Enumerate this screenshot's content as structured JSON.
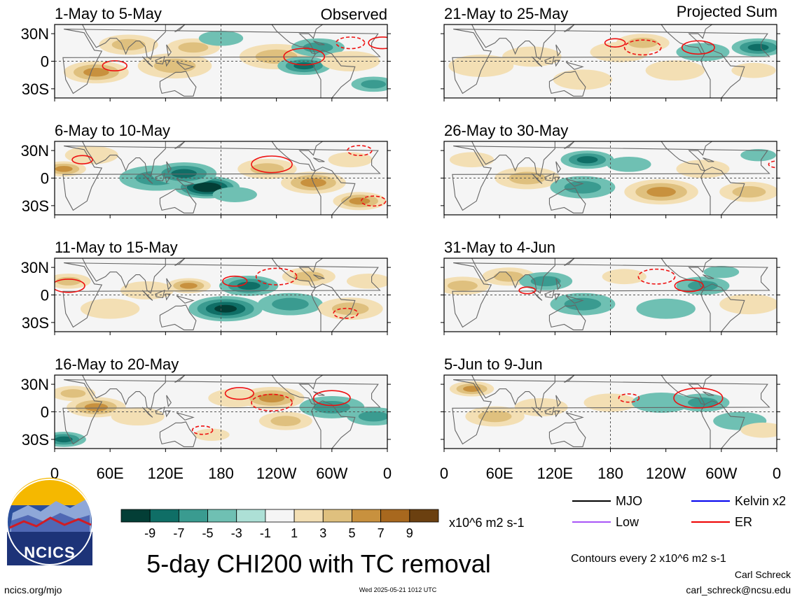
{
  "chart_data": {
    "type": "heatmap",
    "layout": "two columns of four longitude-latitude map panels",
    "title": "5-day CHI200 with TC removal",
    "units_label": "x10^6 m2 s-1",
    "column_headers": {
      "left": "Observed",
      "right": "Projected Sum"
    },
    "panels": [
      {
        "label": "1-May to 5-May",
        "column": "left"
      },
      {
        "label": "6-May to 10-May",
        "column": "left"
      },
      {
        "label": "11-May to 15-May",
        "column": "left"
      },
      {
        "label": "16-May to 20-May",
        "column": "left"
      },
      {
        "label": "21-May to 25-May",
        "column": "right"
      },
      {
        "label": "26-May to 30-May",
        "column": "right"
      },
      {
        "label": "31-May to 4-Jun",
        "column": "right"
      },
      {
        "label": "5-Jun to 9-Jun",
        "column": "right"
      }
    ],
    "y_ticks": [
      "30N",
      "0",
      "30S"
    ],
    "x_ticks": [
      "0",
      "60E",
      "120E",
      "180",
      "120W",
      "60W",
      "0"
    ],
    "xlim": [
      0,
      360
    ],
    "ylim": [
      -40,
      40
    ],
    "colorbar": {
      "tick_labels": [
        "-9",
        "-7",
        "-5",
        "-3",
        "-1",
        "1",
        "3",
        "5",
        "7",
        "9"
      ],
      "colors": [
        "#033e36",
        "#0f6e66",
        "#3a9b90",
        "#6fc0b3",
        "#ade0d6",
        "#f5f5f5",
        "#f3dfb4",
        "#dfc07e",
        "#c8913e",
        "#a8681e",
        "#6b4010"
      ]
    },
    "legend": [
      {
        "name": "MJO",
        "color": "#000000"
      },
      {
        "name": "Kelvin x2",
        "color": "#0000ee"
      },
      {
        "name": "Low",
        "color": "#a855f7"
      },
      {
        "name": "ER",
        "color": "#ee0000"
      }
    ],
    "contour_note": "Contours every 2 x10^6 m2 s-1",
    "anomaly_centers": [
      [
        {
          "lon": 45,
          "lat": -12,
          "v": 5,
          "r": 22
        },
        {
          "lon": 80,
          "lat": 18,
          "v": 3,
          "r": 20
        },
        {
          "lon": 130,
          "lat": -5,
          "v": 3,
          "r": 25
        },
        {
          "lon": 150,
          "lat": 15,
          "v": 4,
          "r": 18
        },
        {
          "lon": 180,
          "lat": 25,
          "v": -2,
          "r": 15
        },
        {
          "lon": 240,
          "lat": 5,
          "v": 3,
          "r": 25
        },
        {
          "lon": 270,
          "lat": -5,
          "v": -6,
          "r": 18
        },
        {
          "lon": 285,
          "lat": 15,
          "v": -3,
          "r": 18
        },
        {
          "lon": 345,
          "lat": -25,
          "v": -3,
          "r": 15
        },
        {
          "lon": 320,
          "lat": 0,
          "v": 2,
          "r": 20
        }
      ],
      [
        {
          "lon": 10,
          "lat": 10,
          "v": 5,
          "r": 15
        },
        {
          "lon": 40,
          "lat": 25,
          "v": 2,
          "r": 18
        },
        {
          "lon": 110,
          "lat": 0,
          "v": -4,
          "r": 25
        },
        {
          "lon": 165,
          "lat": -10,
          "v": -9,
          "r": 22
        },
        {
          "lon": 140,
          "lat": 5,
          "v": -5,
          "r": 22
        },
        {
          "lon": 195,
          "lat": -18,
          "v": -2,
          "r": 15
        },
        {
          "lon": 230,
          "lat": 10,
          "v": 3,
          "r": 20
        },
        {
          "lon": 280,
          "lat": -5,
          "v": 6,
          "r": 22
        },
        {
          "lon": 330,
          "lat": -25,
          "v": 6,
          "r": 18
        },
        {
          "lon": 320,
          "lat": 20,
          "v": 2,
          "r": 15
        }
      ],
      [
        {
          "lon": 15,
          "lat": 15,
          "v": 3,
          "r": 15
        },
        {
          "lon": 60,
          "lat": -15,
          "v": 2,
          "r": 20
        },
        {
          "lon": 100,
          "lat": 5,
          "v": 2,
          "r": 18
        },
        {
          "lon": 145,
          "lat": 10,
          "v": 5,
          "r": 15
        },
        {
          "lon": 185,
          "lat": -15,
          "v": -8,
          "r": 25
        },
        {
          "lon": 210,
          "lat": 10,
          "v": -6,
          "r": 20
        },
        {
          "lon": 255,
          "lat": -10,
          "v": -3,
          "r": 22
        },
        {
          "lon": 275,
          "lat": 20,
          "v": 3,
          "r": 18
        },
        {
          "lon": 320,
          "lat": -15,
          "v": 3,
          "r": 22
        },
        {
          "lon": 340,
          "lat": 15,
          "v": 2,
          "r": 15
        }
      ],
      [
        {
          "lon": 20,
          "lat": 20,
          "v": 3,
          "r": 15
        },
        {
          "lon": 45,
          "lat": 5,
          "v": 6,
          "r": 20
        },
        {
          "lon": 90,
          "lat": -5,
          "v": 2,
          "r": 18
        },
        {
          "lon": 195,
          "lat": 15,
          "v": 2,
          "r": 18
        },
        {
          "lon": 235,
          "lat": 15,
          "v": 6,
          "r": 22
        },
        {
          "lon": 250,
          "lat": -10,
          "v": 3,
          "r": 18
        },
        {
          "lon": 300,
          "lat": 5,
          "v": -3,
          "r": 22
        },
        {
          "lon": 345,
          "lat": -5,
          "v": -4,
          "r": 18
        },
        {
          "lon": 10,
          "lat": -30,
          "v": -5,
          "r": 15
        },
        {
          "lon": 170,
          "lat": -25,
          "v": 2,
          "r": 12
        }
      ],
      [
        {
          "lon": 40,
          "lat": -5,
          "v": 2,
          "r": 22
        },
        {
          "lon": 95,
          "lat": 5,
          "v": 2,
          "r": 20
        },
        {
          "lon": 150,
          "lat": -20,
          "v": 2,
          "r": 20
        },
        {
          "lon": 190,
          "lat": 10,
          "v": 2,
          "r": 20
        },
        {
          "lon": 215,
          "lat": 20,
          "v": 4,
          "r": 18
        },
        {
          "lon": 250,
          "lat": -10,
          "v": 2,
          "r": 20
        },
        {
          "lon": 280,
          "lat": 10,
          "v": -2,
          "r": 18
        },
        {
          "lon": 340,
          "lat": 15,
          "v": -5,
          "r": 18
        },
        {
          "lon": 335,
          "lat": -10,
          "v": 2,
          "r": 15
        }
      ],
      [
        {
          "lon": 30,
          "lat": 20,
          "v": 2,
          "r": 15
        },
        {
          "lon": 90,
          "lat": 0,
          "v": 3,
          "r": 22
        },
        {
          "lon": 155,
          "lat": 20,
          "v": -6,
          "r": 18
        },
        {
          "lon": 150,
          "lat": -10,
          "v": -3,
          "r": 22
        },
        {
          "lon": 200,
          "lat": 15,
          "v": -2,
          "r": 15
        },
        {
          "lon": 235,
          "lat": -15,
          "v": 5,
          "r": 25
        },
        {
          "lon": 280,
          "lat": 10,
          "v": 2,
          "r": 18
        },
        {
          "lon": 330,
          "lat": -15,
          "v": 3,
          "r": 20
        },
        {
          "lon": 340,
          "lat": 25,
          "v": -2,
          "r": 12
        }
      ],
      [
        {
          "lon": 20,
          "lat": 10,
          "v": 3,
          "r": 18
        },
        {
          "lon": 70,
          "lat": 20,
          "v": 3,
          "r": 18
        },
        {
          "lon": 110,
          "lat": 15,
          "v": -3,
          "r": 18
        },
        {
          "lon": 150,
          "lat": -10,
          "v": -3,
          "r": 22
        },
        {
          "lon": 195,
          "lat": 20,
          "v": 2,
          "r": 15
        },
        {
          "lon": 240,
          "lat": -15,
          "v": -2,
          "r": 20
        },
        {
          "lon": 280,
          "lat": 10,
          "v": -3,
          "r": 18
        },
        {
          "lon": 330,
          "lat": -10,
          "v": 2,
          "r": 20
        },
        {
          "lon": 300,
          "lat": 25,
          "v": -2,
          "r": 12
        }
      ],
      [
        {
          "lon": 30,
          "lat": 25,
          "v": 5,
          "r": 15
        },
        {
          "lon": 55,
          "lat": -5,
          "v": 3,
          "r": 20
        },
        {
          "lon": 105,
          "lat": 5,
          "v": 2,
          "r": 18
        },
        {
          "lon": 180,
          "lat": 10,
          "v": 2,
          "r": 18
        },
        {
          "lon": 235,
          "lat": 10,
          "v": -2,
          "r": 20
        },
        {
          "lon": 280,
          "lat": 10,
          "v": -3,
          "r": 18
        },
        {
          "lon": 320,
          "lat": -10,
          "v": -2,
          "r": 18
        },
        {
          "lon": 345,
          "lat": -20,
          "v": 2,
          "r": 15
        }
      ]
    ],
    "er_contours": [
      [
        {
          "lon": 270,
          "lat": 5,
          "r": 10,
          "dash": false
        },
        {
          "lon": 65,
          "lat": -5,
          "r": 6,
          "dash": false
        },
        {
          "lon": 355,
          "lat": 20,
          "r": 7,
          "dash": false
        },
        {
          "lon": 320,
          "lat": 20,
          "r": 7,
          "dash": true
        }
      ],
      [
        {
          "lon": 30,
          "lat": 20,
          "r": 5,
          "dash": false
        },
        {
          "lon": 235,
          "lat": 15,
          "r": 10,
          "dash": false
        },
        {
          "lon": 345,
          "lat": -25,
          "r": 6,
          "dash": true
        },
        {
          "lon": 330,
          "lat": 30,
          "r": 6,
          "dash": true
        }
      ],
      [
        {
          "lon": 15,
          "lat": 10,
          "r": 8,
          "dash": false
        },
        {
          "lon": 195,
          "lat": 15,
          "r": 6,
          "dash": false
        },
        {
          "lon": 240,
          "lat": 20,
          "r": 10,
          "dash": true
        },
        {
          "lon": 315,
          "lat": -20,
          "r": 6,
          "dash": true
        }
      ],
      [
        {
          "lon": 200,
          "lat": 20,
          "r": 7,
          "dash": false
        },
        {
          "lon": 235,
          "lat": 10,
          "r": 10,
          "dash": true
        },
        {
          "lon": 300,
          "lat": 15,
          "r": 9,
          "dash": false
        },
        {
          "lon": 160,
          "lat": -20,
          "r": 5,
          "dash": true
        }
      ],
      [
        {
          "lon": 185,
          "lat": 20,
          "r": 5,
          "dash": false
        },
        {
          "lon": 215,
          "lat": 15,
          "r": 9,
          "dash": true
        },
        {
          "lon": 275,
          "lat": 15,
          "r": 8,
          "dash": false
        }
      ],
      [
        {
          "lon": 360,
          "lat": 15,
          "r": 4,
          "dash": true
        }
      ],
      [
        {
          "lon": 230,
          "lat": 20,
          "r": 9,
          "dash": true
        },
        {
          "lon": 265,
          "lat": 10,
          "r": 7,
          "dash": false
        },
        {
          "lon": 90,
          "lat": 5,
          "r": 4,
          "dash": false
        }
      ],
      [
        {
          "lon": 200,
          "lat": 15,
          "r": 5,
          "dash": true
        },
        {
          "lon": 275,
          "lat": 15,
          "r": 12,
          "dash": false
        }
      ]
    ]
  },
  "footer": {
    "site": "ncics.org/mjo",
    "timestamp": "Wed 2025-05-21 1012 UTC",
    "author": "Carl Schreck",
    "email": "carl_schreck@ncsu.edu",
    "logo_text": "NCICS"
  }
}
